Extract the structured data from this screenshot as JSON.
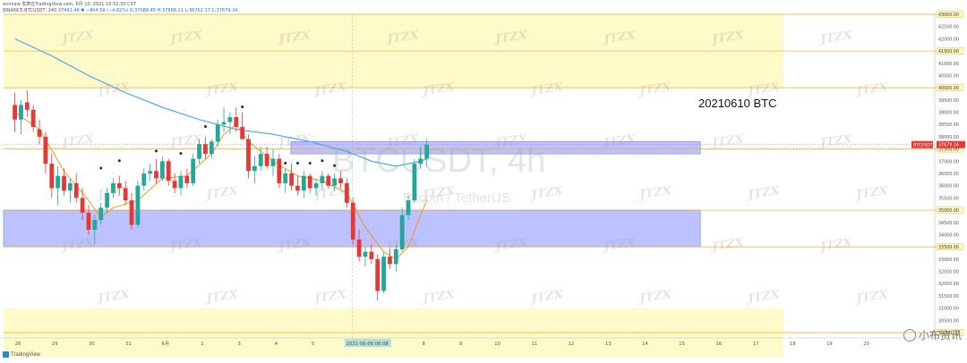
{
  "header": {
    "line1": "enmiaw 发表在TradingView.com, 6月 10, 2021 10:52:30 CST",
    "line2_prefix": "BINANCE:BTCUSDT, 240",
    "line2_ohlc": "37491.46 ▼ −904.59 (−4.82%) O:37088.45 H:37866.11 L:36762.17 C:37679.34"
  },
  "annotation": {
    "text": "20210610 BTC"
  },
  "watermark": {
    "symbol": "BTCUSDT, 4h",
    "description": "Bitcoin / TetherUS",
    "tiles": "JTZX"
  },
  "footer": {
    "tv_logo": "TradingView",
    "source_mark": "小布资讯"
  },
  "colors": {
    "up": "#26a69a",
    "down": "#e53935",
    "ma_blue": "#42a5f5",
    "ma_orange": "#fb8c00",
    "zone_yellow": "#fff59d",
    "zone_blue": "#9fa8ff",
    "level_line": "#f9a825",
    "dot": "#1a237e"
  },
  "chart_data": {
    "type": "candlestick",
    "symbol": "BTCUSDT",
    "interval": "240",
    "y_axis": {
      "range": [
        30000,
        43000
      ],
      "tick_step": 500,
      "tick_every_label": 1000,
      "highlighted_levels": [
        43000,
        41500,
        40000,
        37500,
        35000,
        33500,
        30000
      ],
      "last_price": 37679.34,
      "last_price_label": "37679.34"
    },
    "x_axis": {
      "labels": [
        "28",
        "29",
        "30",
        "31",
        "6月",
        "2",
        "3",
        "4",
        "5",
        "2021-06-06  08:00",
        "7",
        "8",
        "9",
        "10",
        "11",
        "12",
        "13",
        "14",
        "15",
        "16",
        "17",
        "18",
        "19",
        "20"
      ],
      "label_day_index": [
        0,
        1,
        2,
        3,
        4,
        5,
        6,
        7,
        8,
        9,
        10,
        11,
        12,
        13,
        14,
        15,
        16,
        17,
        18,
        19,
        20,
        21,
        22,
        23
      ],
      "highlighted_label": "2021-06-06  08:00"
    },
    "zones": [
      {
        "kind": "supply",
        "color": "yellow",
        "from": 40000,
        "to": 43000,
        "until_day": 20.75
      },
      {
        "kind": "resistance",
        "color": "blue",
        "from": 37300,
        "to": 37800,
        "from_day": 7.4,
        "until_day": 18.5
      },
      {
        "kind": "support",
        "color": "blue",
        "from": 33500,
        "to": 35000,
        "until_day": 18.5
      },
      {
        "kind": "demand",
        "color": "yellow",
        "from": 29000,
        "to": 31000,
        "until_day": 20.75
      }
    ],
    "series": [
      {
        "name": "",
        "kind": "candles",
        "candles": [
          [
            39300,
            39800,
            38200,
            38700
          ],
          [
            38700,
            39500,
            38100,
            39300
          ],
          [
            39400,
            39900,
            38800,
            39100
          ],
          [
            39100,
            39300,
            38200,
            38400
          ],
          [
            38300,
            38700,
            37700,
            38000
          ],
          [
            38000,
            38200,
            36500,
            36900
          ],
          [
            36900,
            37300,
            35500,
            35900
          ],
          [
            35900,
            36800,
            35200,
            36400
          ],
          [
            36400,
            36700,
            35600,
            35800
          ],
          [
            35800,
            36300,
            35300,
            36100
          ],
          [
            36100,
            36500,
            35300,
            35500
          ],
          [
            35500,
            35900,
            34600,
            34900
          ],
          [
            34900,
            35200,
            34000,
            34200
          ],
          [
            34200,
            34800,
            33600,
            34600
          ],
          [
            34600,
            35300,
            34400,
            35100
          ],
          [
            35100,
            35900,
            34900,
            35700
          ],
          [
            35700,
            36300,
            35500,
            36100
          ],
          [
            36100,
            36400,
            35600,
            35900
          ],
          [
            35900,
            36200,
            35200,
            35400
          ],
          [
            35400,
            35700,
            34200,
            34400
          ],
          [
            34400,
            36200,
            34300,
            36000
          ],
          [
            36000,
            36700,
            35800,
            36500
          ],
          [
            36500,
            36900,
            36200,
            36600
          ],
          [
            36600,
            37100,
            36100,
            36300
          ],
          [
            36300,
            37200,
            36200,
            37000
          ],
          [
            37000,
            37100,
            36000,
            36200
          ],
          [
            36200,
            36500,
            35700,
            35900
          ],
          [
            35900,
            36600,
            35600,
            36400
          ],
          [
            36400,
            36700,
            35900,
            36100
          ],
          [
            36100,
            37300,
            36000,
            37100
          ],
          [
            37100,
            37900,
            36900,
            37700
          ],
          [
            37700,
            38000,
            37100,
            37300
          ],
          [
            37300,
            37900,
            37100,
            37800
          ],
          [
            37800,
            38700,
            37600,
            38500
          ],
          [
            38500,
            39200,
            38200,
            38600
          ],
          [
            38600,
            39000,
            38100,
            38800
          ],
          [
            38800,
            39200,
            38200,
            38400
          ],
          [
            38400,
            39000,
            38000,
            37900
          ],
          [
            37900,
            38100,
            36300,
            36600
          ],
          [
            36600,
            37200,
            36100,
            36800
          ],
          [
            36800,
            37600,
            36600,
            37300
          ],
          [
            37300,
            37600,
            36700,
            36800
          ],
          [
            36800,
            37500,
            36400,
            37100
          ],
          [
            37100,
            37300,
            35900,
            36100
          ],
          [
            36100,
            36700,
            35700,
            36500
          ],
          [
            36500,
            36900,
            35800,
            36000
          ],
          [
            36000,
            36400,
            35600,
            35800
          ],
          [
            35800,
            36600,
            35500,
            36400
          ],
          [
            36400,
            36500,
            35700,
            35900
          ],
          [
            35900,
            36300,
            35600,
            36100
          ],
          [
            36100,
            36600,
            35800,
            36400
          ],
          [
            36400,
            36500,
            35900,
            36000
          ],
          [
            36000,
            36500,
            35800,
            36300
          ],
          [
            36300,
            36600,
            35900,
            36100
          ],
          [
            36100,
            36300,
            35100,
            35300
          ],
          [
            35300,
            35500,
            33600,
            33800
          ],
          [
            33800,
            34200,
            32900,
            33100
          ],
          [
            33100,
            33500,
            32700,
            33300
          ],
          [
            33300,
            33600,
            32800,
            33000
          ],
          [
            33000,
            33200,
            31300,
            31700
          ],
          [
            31700,
            33300,
            31600,
            33100
          ],
          [
            33100,
            33400,
            32600,
            32800
          ],
          [
            32800,
            33600,
            32500,
            33400
          ],
          [
            33400,
            35100,
            33300,
            34800
          ],
          [
            34800,
            35600,
            34600,
            35400
          ],
          [
            35400,
            37100,
            35300,
            36900
          ],
          [
            36900,
            37600,
            36700,
            37100
          ],
          [
            37100,
            37900,
            36800,
            37679.34
          ]
        ]
      },
      {
        "name": "",
        "kind": "line",
        "color": "blue",
        "points": [
          [
            0,
            42000
          ],
          [
            6,
            41300
          ],
          [
            12,
            40500
          ],
          [
            18,
            39800
          ],
          [
            24,
            39200
          ],
          [
            30,
            38700
          ],
          [
            36,
            38300
          ],
          [
            42,
            38100
          ],
          [
            48,
            37800
          ],
          [
            54,
            37400
          ],
          [
            58,
            37000
          ],
          [
            62,
            36800
          ],
          [
            66,
            37000
          ],
          [
            67,
            37100
          ]
        ]
      },
      {
        "name": "",
        "kind": "line",
        "color": "orange",
        "points": [
          [
            0,
            39000
          ],
          [
            4,
            38300
          ],
          [
            8,
            36600
          ],
          [
            12,
            35400
          ],
          [
            14,
            34700
          ],
          [
            16,
            35100
          ],
          [
            20,
            35400
          ],
          [
            24,
            36300
          ],
          [
            28,
            36400
          ],
          [
            32,
            37300
          ],
          [
            34,
            38100
          ],
          [
            36,
            38500
          ],
          [
            38,
            37800
          ],
          [
            42,
            37000
          ],
          [
            46,
            36400
          ],
          [
            50,
            36200
          ],
          [
            54,
            35700
          ],
          [
            57,
            34300
          ],
          [
            60,
            33300
          ],
          [
            62,
            33000
          ],
          [
            64,
            33500
          ],
          [
            66,
            34800
          ],
          [
            67,
            35400
          ]
        ]
      }
    ],
    "markers": {
      "kind": "dot",
      "color": "dark-blue",
      "at": [
        [
          14,
          36500
        ],
        [
          17,
          36800
        ],
        [
          23,
          37200
        ],
        [
          27,
          37100
        ],
        [
          31,
          38200
        ],
        [
          37,
          39000
        ],
        [
          44,
          36700
        ],
        [
          46,
          36700
        ],
        [
          48,
          36700
        ],
        [
          50,
          36800
        ],
        [
          52,
          36600
        ]
      ]
    }
  }
}
